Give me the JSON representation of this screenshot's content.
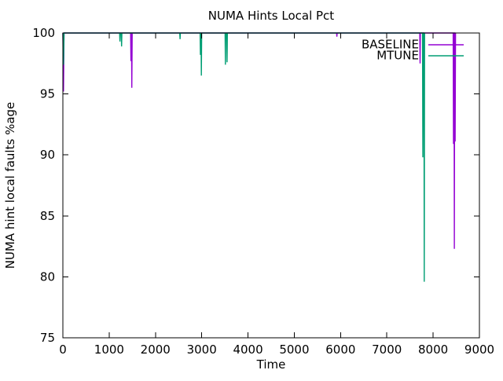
{
  "figure": {
    "background": "#ffffff",
    "border_color": "#000000",
    "text_color": "#000000"
  },
  "chart_data": {
    "type": "line",
    "title": "NUMA Hints Local Pct",
    "xlabel": "Time",
    "ylabel": "NUMA hint local faults %age",
    "xlim": [
      0,
      9000
    ],
    "ylim": [
      75,
      100
    ],
    "xticks": [
      0,
      1000,
      2000,
      3000,
      4000,
      5000,
      6000,
      7000,
      8000,
      9000
    ],
    "yticks": [
      75,
      80,
      85,
      90,
      95,
      100
    ],
    "grid": false,
    "legend_position": "top-right",
    "legend": [
      "BASELINE",
      "MTUNE"
    ],
    "series": [
      {
        "name": "BASELINE",
        "color": "#9400D3",
        "points": [
          [
            0,
            100
          ],
          [
            14,
            95.2
          ],
          [
            26,
            100
          ],
          [
            1464,
            100
          ],
          [
            1471,
            97.7
          ],
          [
            1478,
            100
          ],
          [
            1483,
            100
          ],
          [
            1490,
            95.5
          ],
          [
            1497,
            100
          ],
          [
            5914,
            100
          ],
          [
            5920,
            99.7
          ],
          [
            5926,
            100
          ],
          [
            7711,
            100
          ],
          [
            7718,
            97.5
          ],
          [
            7725,
            100
          ],
          [
            8432,
            100
          ],
          [
            8439,
            90.9
          ],
          [
            8446,
            100
          ],
          [
            8451,
            100
          ],
          [
            8458,
            82.3
          ],
          [
            8465,
            100
          ],
          [
            8469,
            100
          ],
          [
            8476,
            91.1
          ],
          [
            8483,
            100
          ]
        ]
      },
      {
        "name": "MTUNE",
        "color": "#009E73",
        "points": [
          [
            0,
            100
          ],
          [
            14,
            97.4
          ],
          [
            26,
            100
          ],
          [
            1226,
            100
          ],
          [
            1233,
            99.3
          ],
          [
            1240,
            100
          ],
          [
            1261,
            100
          ],
          [
            1268,
            98.9
          ],
          [
            1275,
            100
          ],
          [
            2525,
            100
          ],
          [
            2532,
            99.5
          ],
          [
            2539,
            100
          ],
          [
            2965,
            100
          ],
          [
            2972,
            98.2
          ],
          [
            2979,
            100
          ],
          [
            2985,
            100
          ],
          [
            2992,
            96.5
          ],
          [
            2999,
            100
          ],
          [
            3505,
            100
          ],
          [
            3512,
            97.4
          ],
          [
            3519,
            100
          ],
          [
            3540,
            100
          ],
          [
            3547,
            97.6
          ],
          [
            3554,
            100
          ],
          [
            7771,
            100
          ],
          [
            7778,
            89.8
          ],
          [
            7785,
            100
          ],
          [
            7801,
            100
          ],
          [
            7808,
            79.6
          ],
          [
            7815,
            100
          ]
        ]
      }
    ]
  }
}
